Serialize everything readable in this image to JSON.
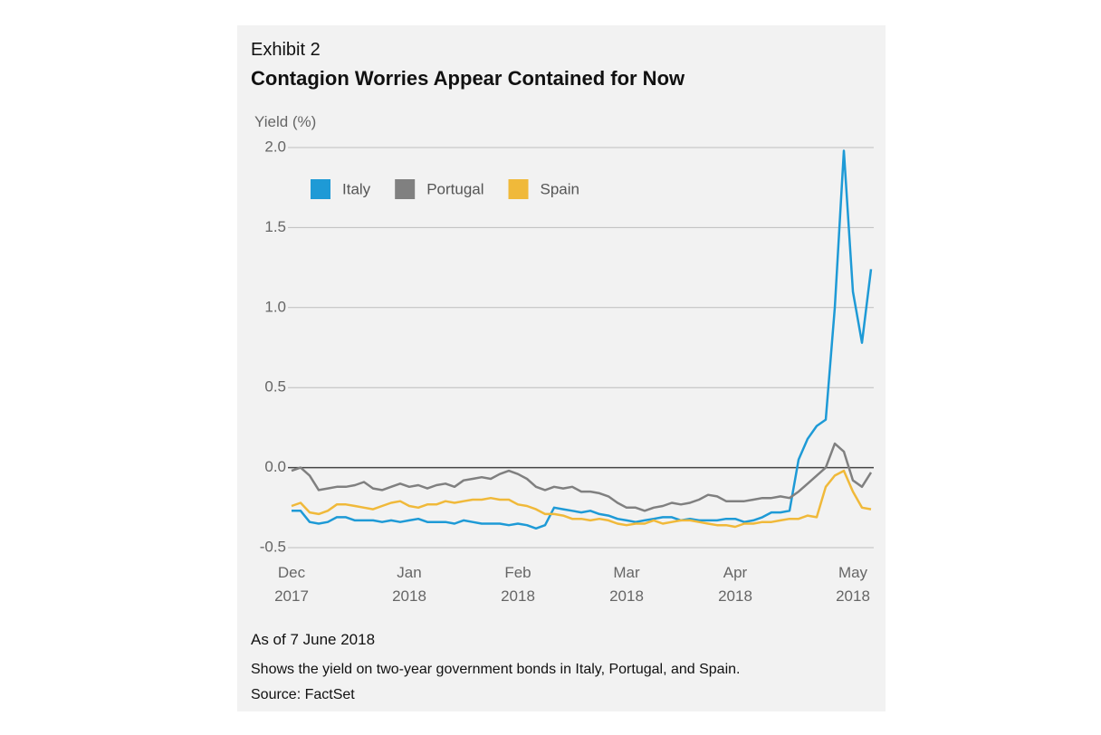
{
  "chart_data": {
    "type": "line",
    "exhibit": "Exhibit 2",
    "title": "Contagion Worries Appear Contained for Now",
    "y_label": "Yield (%)",
    "notes": [
      "As of 7 June 2018",
      "Shows the yield on two-year government bonds in Italy, Portugal, and Spain.",
      "Source: FactSet"
    ],
    "x": [
      0,
      1,
      2,
      3,
      4,
      5,
      6,
      7,
      8,
      9,
      10,
      11,
      12,
      13,
      14,
      15,
      16,
      17,
      18,
      19,
      20,
      21,
      22,
      23,
      24,
      25,
      26,
      27,
      28,
      29,
      30,
      31,
      32,
      33,
      34,
      35,
      36,
      37,
      38,
      39,
      40,
      41,
      42,
      43,
      44,
      45,
      46,
      47,
      48,
      49,
      50,
      51,
      52,
      53,
      54,
      55,
      56,
      57,
      58,
      59,
      60,
      61,
      62,
      63,
      64
    ],
    "xlim": [
      0,
      64
    ],
    "xticks": [
      {
        "value": 0,
        "label": "Dec 2017"
      },
      {
        "value": 13,
        "label": "Jan 2018"
      },
      {
        "value": 25,
        "label": "Feb 2018"
      },
      {
        "value": 37,
        "label": "Mar 2018"
      },
      {
        "value": 49,
        "label": "Apr 2018"
      },
      {
        "value": 62,
        "label": "May 2018"
      }
    ],
    "ylim": [
      -0.5,
      2.0
    ],
    "yticks": [
      -0.5,
      {
        "value": 0,
        "label": "0.0"
      },
      0.5,
      {
        "value": 1,
        "label": "1.0"
      },
      1.5,
      {
        "value": 2,
        "label": "2.0"
      }
    ],
    "grid": true,
    "series": [
      {
        "name": "Italy",
        "color": "#1e9ad6",
        "values": [
          -0.27,
          -0.27,
          -0.34,
          -0.35,
          -0.34,
          -0.31,
          -0.31,
          -0.33,
          -0.33,
          -0.33,
          -0.34,
          -0.33,
          -0.34,
          -0.33,
          -0.32,
          -0.34,
          -0.34,
          -0.34,
          -0.35,
          -0.33,
          -0.34,
          -0.35,
          -0.35,
          -0.35,
          -0.36,
          -0.35,
          -0.36,
          -0.38,
          -0.36,
          -0.25,
          -0.26,
          -0.27,
          -0.28,
          -0.27,
          -0.29,
          -0.3,
          -0.32,
          -0.33,
          -0.34,
          -0.33,
          -0.32,
          -0.31,
          -0.31,
          -0.33,
          -0.32,
          -0.33,
          -0.33,
          -0.33,
          -0.32,
          -0.32,
          -0.34,
          -0.33,
          -0.31,
          -0.28,
          -0.28,
          -0.27,
          0.05,
          0.18,
          0.26,
          0.3,
          1.0,
          1.98,
          1.1,
          0.78,
          1.24
        ]
      },
      {
        "name": "Portugal",
        "color": "#808080",
        "values": [
          -0.02,
          0.0,
          -0.05,
          -0.14,
          -0.13,
          -0.12,
          -0.12,
          -0.11,
          -0.09,
          -0.13,
          -0.14,
          -0.12,
          -0.1,
          -0.12,
          -0.11,
          -0.13,
          -0.11,
          -0.1,
          -0.12,
          -0.08,
          -0.07,
          -0.06,
          -0.07,
          -0.04,
          -0.02,
          -0.04,
          -0.07,
          -0.12,
          -0.14,
          -0.12,
          -0.13,
          -0.12,
          -0.15,
          -0.15,
          -0.16,
          -0.18,
          -0.22,
          -0.25,
          -0.25,
          -0.27,
          -0.25,
          -0.24,
          -0.22,
          -0.23,
          -0.22,
          -0.2,
          -0.17,
          -0.18,
          -0.21,
          -0.21,
          -0.21,
          -0.2,
          -0.19,
          -0.19,
          -0.18,
          -0.19,
          -0.15,
          -0.1,
          -0.05,
          0.0,
          0.15,
          0.1,
          -0.08,
          -0.12,
          -0.03
        ]
      },
      {
        "name": "Spain",
        "color": "#f0b93a",
        "values": [
          -0.24,
          -0.22,
          -0.28,
          -0.29,
          -0.27,
          -0.23,
          -0.23,
          -0.24,
          -0.25,
          -0.26,
          -0.24,
          -0.22,
          -0.21,
          -0.24,
          -0.25,
          -0.23,
          -0.23,
          -0.21,
          -0.22,
          -0.21,
          -0.2,
          -0.2,
          -0.19,
          -0.2,
          -0.2,
          -0.23,
          -0.24,
          -0.26,
          -0.29,
          -0.29,
          -0.3,
          -0.32,
          -0.32,
          -0.33,
          -0.32,
          -0.33,
          -0.35,
          -0.36,
          -0.35,
          -0.35,
          -0.33,
          -0.35,
          -0.34,
          -0.33,
          -0.33,
          -0.34,
          -0.35,
          -0.36,
          -0.36,
          -0.37,
          -0.35,
          -0.35,
          -0.34,
          -0.34,
          -0.33,
          -0.32,
          -0.32,
          -0.3,
          -0.31,
          -0.12,
          -0.05,
          -0.02,
          -0.15,
          -0.25,
          -0.26
        ]
      }
    ]
  }
}
